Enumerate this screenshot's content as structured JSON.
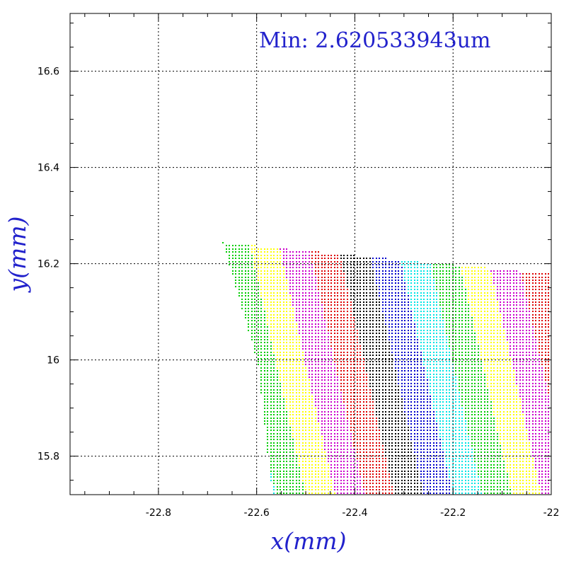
{
  "chart_data": {
    "type": "scatter",
    "title": "",
    "annotation": "Min: 2.620533943um",
    "xlabel": "x(mm)",
    "ylabel": "y(mm)",
    "xlim": [
      -22.98,
      -22.0
    ],
    "ylim": [
      15.72,
      16.72
    ],
    "x_ticks": [
      {
        "value": -22.8,
        "label": "-22.8"
      },
      {
        "value": -22.6,
        "label": "-22.6"
      },
      {
        "value": -22.4,
        "label": "-22.4"
      },
      {
        "value": -22.2,
        "label": "-22.2"
      },
      {
        "value": -22.0,
        "label": "-22"
      }
    ],
    "y_ticks": [
      {
        "value": 15.8,
        "label": "15.8"
      },
      {
        "value": 16.0,
        "label": "16"
      },
      {
        "value": 16.2,
        "label": "16.2"
      },
      {
        "value": 16.4,
        "label": "16.4"
      },
      {
        "value": 16.6,
        "label": "16.6"
      }
    ],
    "grid": true,
    "point_region": {
      "x_range": [
        -22.67,
        -22.0
      ],
      "y_bottom": 15.725,
      "top_edge": [
        [
          -22.67,
          16.245
        ],
        [
          -22.0,
          16.18
        ]
      ],
      "left_edge": [
        [
          -22.67,
          16.245
        ],
        [
          -22.6,
          16.0
        ],
        [
          -22.57,
          15.725
        ]
      ],
      "grid_step": 0.0065
    },
    "band_colors": [
      "#00cc00",
      "#ffff00",
      "#cc00cc",
      "#dd0000",
      "#000000",
      "#0000cc",
      "#00e5e5"
    ],
    "band_slope_dx_per_dy": -0.22,
    "band_width_x": 0.06,
    "band_phase_x_at_y16_2": -22.667
  }
}
